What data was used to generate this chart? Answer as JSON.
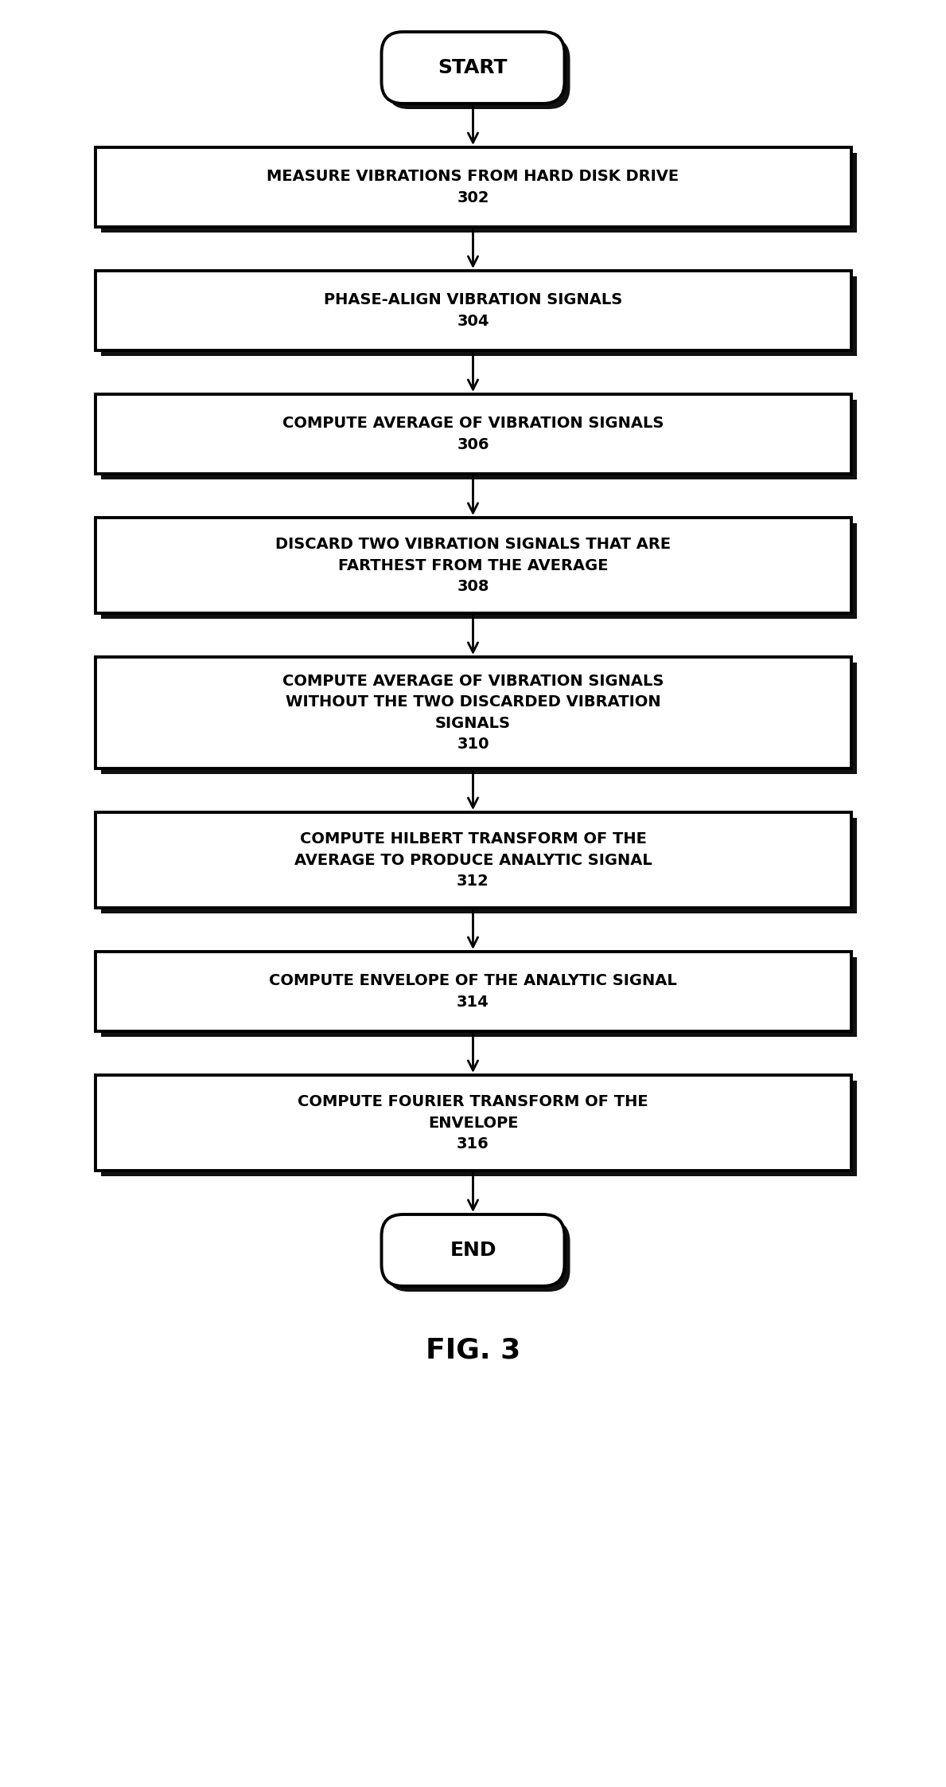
{
  "title": "FIG. 3",
  "background_color": "#ffffff",
  "line_color": "#000000",
  "text_color": "#000000",
  "box_face_color": "#ffffff",
  "nodes": [
    {
      "id": "start",
      "type": "terminal",
      "label": "START",
      "num": ""
    },
    {
      "id": "302",
      "type": "process",
      "label": "MEASURE VIBRATIONS FROM HARD DISK DRIVE",
      "num": "302"
    },
    {
      "id": "304",
      "type": "process",
      "label": "PHASE-ALIGN VIBRATION SIGNALS",
      "num": "304"
    },
    {
      "id": "306",
      "type": "process",
      "label": "COMPUTE AVERAGE OF VIBRATION SIGNALS",
      "num": "306"
    },
    {
      "id": "308",
      "type": "process",
      "label": "DISCARD TWO VIBRATION SIGNALS THAT ARE\nFARTHEST FROM THE AVERAGE",
      "num": "308"
    },
    {
      "id": "310",
      "type": "process",
      "label": "COMPUTE AVERAGE OF VIBRATION SIGNALS\nWITHOUT THE TWO DISCARDED VIBRATION\nSIGNALS",
      "num": "310"
    },
    {
      "id": "312",
      "type": "process",
      "label": "COMPUTE HILBERT TRANSFORM OF THE\nAVERAGE TO PRODUCE ANALYTIC SIGNAL",
      "num": "312"
    },
    {
      "id": "314",
      "type": "process",
      "label": "COMPUTE ENVELOPE OF THE ANALYTIC SIGNAL",
      "num": "314"
    },
    {
      "id": "316",
      "type": "process",
      "label": "COMPUTE FOURIER TRANSFORM OF THE\nENVELOPE",
      "num": "316"
    },
    {
      "id": "end",
      "type": "terminal",
      "label": "END",
      "num": ""
    }
  ],
  "fig_width": 11.89,
  "fig_height": 22.44,
  "dpi": 100
}
